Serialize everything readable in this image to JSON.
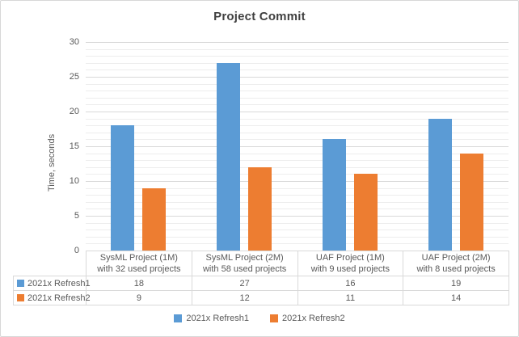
{
  "chart_data": {
    "type": "bar",
    "title": "Project Commit",
    "ylabel": "Time, seconds",
    "ylim": [
      0,
      30
    ],
    "ytick_step": 5,
    "minor_unit": 1,
    "grid": "horizontal major and minor gridlines",
    "legend_position": "bottom",
    "data_table_shown": true,
    "categories": [
      {
        "label": "SysML Project (1M)",
        "sublabel": "with 32 used projects"
      },
      {
        "label": "SysML Project (2M)",
        "sublabel": "with 58 used projects"
      },
      {
        "label": "UAF Project (1M)",
        "sublabel": "with 9 used projects"
      },
      {
        "label": "UAF Project (2M)",
        "sublabel": "with 8 used projects"
      }
    ],
    "series": [
      {
        "name": "2021x Refresh1",
        "color": "#5B9BD5",
        "values": [
          18,
          27,
          16,
          19
        ]
      },
      {
        "name": "2021x Refresh2",
        "color": "#ED7D31",
        "values": [
          9,
          12,
          11,
          14
        ]
      }
    ]
  }
}
